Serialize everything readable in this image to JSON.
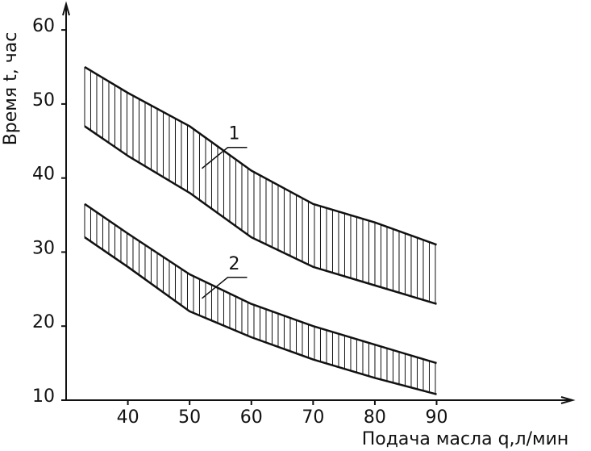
{
  "chart_data": {
    "type": "band",
    "x_label": "Подача масла q,л/мин",
    "y_label": "Время t, час",
    "x": [
      33,
      40,
      50,
      60,
      70,
      80,
      90
    ],
    "series": [
      {
        "name": "1",
        "color": "#111111",
        "upper": [
          55,
          51.5,
          47,
          41,
          36.5,
          34,
          31
        ],
        "lower": [
          47,
          43,
          38,
          32,
          28,
          25.5,
          23
        ]
      },
      {
        "name": "2",
        "color": "#111111",
        "upper": [
          36.5,
          32.5,
          27,
          23,
          20,
          17.5,
          15
        ],
        "lower": [
          32,
          28,
          22,
          18.5,
          15.5,
          13,
          10.8
        ]
      }
    ],
    "xlim": [
      30,
      112
    ],
    "ylim": [
      10,
      63.5
    ],
    "xticks": [
      40,
      50,
      60,
      70,
      80,
      90
    ],
    "yticks": [
      10,
      20,
      30,
      40,
      50,
      60
    ]
  }
}
